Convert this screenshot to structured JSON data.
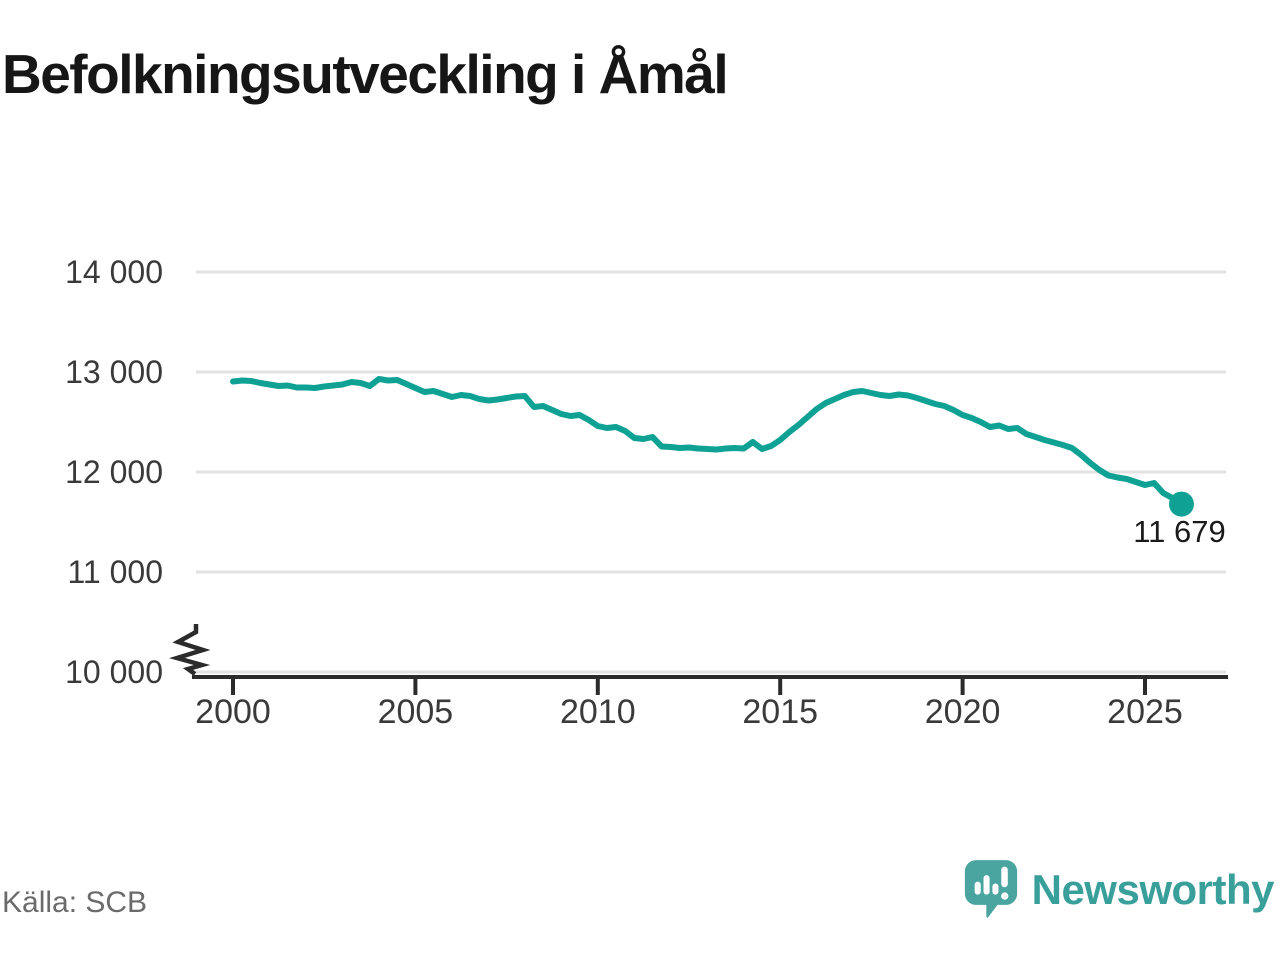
{
  "page": {
    "title": "Befolkningsutveckling i Åmål",
    "source": "Källa: SCB"
  },
  "branding": {
    "name": "Newsworthy",
    "icon": "newsworthy-speech-bubble-chart-icon"
  },
  "colors": {
    "line": "#0fa294",
    "logo": "#399f9a",
    "logo_icon": "#4aa5a1",
    "grid": "#e2e2e2",
    "axis": "#2b2b2b",
    "axis_text": "#3a3a3a",
    "end_label_text": "#1a1a1a"
  },
  "chart_data": {
    "type": "line",
    "title": "Befolkningsutveckling i Åmål",
    "source": "Källa: SCB",
    "xlabel": "",
    "ylabel": "",
    "grid": "horizontal",
    "axis_break_at_bottom": true,
    "legend": "none",
    "ylim_displayed": [
      10000,
      14250
    ],
    "xlim_displayed": [
      1999,
      2027.3
    ],
    "yticks": [
      {
        "value": 14000,
        "label": "14 000"
      },
      {
        "value": 13000,
        "label": "13 000"
      },
      {
        "value": 12000,
        "label": "12 000"
      },
      {
        "value": 11000,
        "label": "11 000"
      },
      {
        "value": 10000,
        "label": "10 000"
      }
    ],
    "xticks": [
      {
        "value": 2000,
        "label": "2000"
      },
      {
        "value": 2005,
        "label": "2005"
      },
      {
        "value": 2010,
        "label": "2010"
      },
      {
        "value": 2015,
        "label": "2015"
      },
      {
        "value": 2020,
        "label": "2020"
      },
      {
        "value": 2025,
        "label": "2025"
      }
    ],
    "end_label": "11 679",
    "end_value": 11679,
    "series_name": "Befolkning",
    "x": [
      2000,
      2000.25,
      2000.5,
      2000.75,
      2001,
      2001.25,
      2001.5,
      2001.75,
      2002,
      2002.25,
      2002.5,
      2002.75,
      2003,
      2003.25,
      2003.5,
      2003.75,
      2004,
      2004.25,
      2004.5,
      2004.75,
      2005,
      2005.25,
      2005.5,
      2005.75,
      2006,
      2006.25,
      2006.5,
      2006.75,
      2007,
      2007.25,
      2007.5,
      2007.75,
      2008,
      2008.25,
      2008.5,
      2008.75,
      2009,
      2009.25,
      2009.5,
      2009.75,
      2010,
      2010.25,
      2010.5,
      2010.75,
      2011,
      2011.25,
      2011.5,
      2011.75,
      2012,
      2012.25,
      2012.5,
      2012.75,
      2013,
      2013.25,
      2013.5,
      2013.75,
      2014,
      2014.25,
      2014.5,
      2014.75,
      2015,
      2015.25,
      2015.5,
      2015.75,
      2016,
      2016.25,
      2016.5,
      2016.75,
      2017,
      2017.25,
      2017.5,
      2017.75,
      2018,
      2018.25,
      2018.5,
      2018.75,
      2019,
      2019.25,
      2019.5,
      2019.75,
      2020,
      2020.25,
      2020.5,
      2020.75,
      2021,
      2021.25,
      2021.5,
      2021.75,
      2022,
      2022.25,
      2022.5,
      2022.75,
      2023,
      2023.25,
      2023.5,
      2023.75,
      2024,
      2024.25,
      2024.5,
      2024.75,
      2025,
      2025.25,
      2025.5,
      2025.75,
      2026
    ],
    "values": [
      12905,
      12915,
      12910,
      12890,
      12875,
      12860,
      12865,
      12845,
      12845,
      12840,
      12855,
      12865,
      12875,
      12900,
      12890,
      12860,
      12930,
      12915,
      12920,
      12880,
      12840,
      12800,
      12810,
      12780,
      12750,
      12770,
      12760,
      12730,
      12715,
      12725,
      12740,
      12755,
      12760,
      12650,
      12660,
      12620,
      12580,
      12560,
      12570,
      12520,
      12460,
      12440,
      12450,
      12410,
      12340,
      12330,
      12350,
      12255,
      12250,
      12240,
      12245,
      12235,
      12230,
      12225,
      12235,
      12240,
      12235,
      12300,
      12230,
      12260,
      12320,
      12400,
      12470,
      12550,
      12630,
      12690,
      12730,
      12770,
      12800,
      12810,
      12790,
      12770,
      12760,
      12775,
      12765,
      12740,
      12710,
      12680,
      12660,
      12620,
      12570,
      12540,
      12500,
      12450,
      12465,
      12430,
      12440,
      12380,
      12350,
      12320,
      12295,
      12270,
      12240,
      12170,
      12090,
      12020,
      11965,
      11945,
      11930,
      11900,
      11870,
      11890,
      11790,
      11740,
      11679
    ]
  }
}
